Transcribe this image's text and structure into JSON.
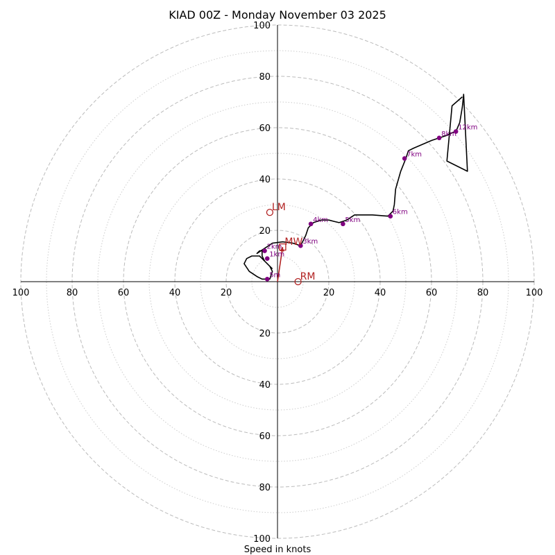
{
  "chart_data": {
    "type": "hodograph",
    "title": "KIAD 00Z - Monday November 03 2025",
    "xlabel": "Speed in knots",
    "range": [
      -100,
      100
    ],
    "ring_labels": [
      "20",
      "40",
      "60",
      "80",
      "100"
    ],
    "left_ticks": [
      "100",
      "80",
      "60",
      "40",
      "20"
    ],
    "right_ticks": [
      "20",
      "40",
      "60",
      "80",
      "100"
    ],
    "top_ticks": [
      "100",
      "80",
      "60",
      "40",
      "20"
    ],
    "bottom_ticks": [
      "20",
      "40",
      "60",
      "80",
      "100"
    ],
    "major_rings": [
      20,
      40,
      60,
      80,
      100
    ],
    "minor_rings": [
      10,
      30,
      50,
      70,
      90
    ],
    "trace": [
      [
        -2,
        5
      ],
      [
        -4,
        7
      ],
      [
        -5,
        8
      ],
      [
        -6,
        9
      ],
      [
        -7,
        10
      ],
      [
        -10,
        10
      ],
      [
        -12,
        9
      ],
      [
        -13,
        7
      ],
      [
        -11,
        4
      ],
      [
        -8,
        2
      ],
      [
        -6,
        1
      ],
      [
        -4,
        1
      ],
      [
        -3,
        1
      ],
      [
        -2,
        4
      ],
      [
        -3,
        6
      ],
      [
        -5,
        8
      ],
      [
        -6,
        10
      ],
      [
        -6,
        12
      ],
      [
        -7,
        12
      ],
      [
        -8,
        11
      ],
      [
        -5,
        13
      ],
      [
        -2,
        15
      ],
      [
        2,
        15.5
      ],
      [
        6,
        15
      ],
      [
        9,
        14
      ],
      [
        11,
        18
      ],
      [
        12,
        21
      ],
      [
        14,
        23
      ],
      [
        17,
        24
      ],
      [
        20,
        24
      ],
      [
        22,
        23.5
      ],
      [
        24,
        23
      ],
      [
        27,
        24
      ],
      [
        30,
        26
      ],
      [
        37,
        26
      ],
      [
        43,
        25.5
      ],
      [
        45,
        27.5
      ],
      [
        45.5,
        30
      ],
      [
        46,
        36
      ],
      [
        48,
        43
      ],
      [
        50,
        48
      ],
      [
        51,
        51
      ],
      [
        53,
        52
      ],
      [
        60,
        55
      ],
      [
        63,
        56
      ],
      [
        66,
        57
      ],
      [
        68,
        58
      ],
      [
        69.5,
        58.5
      ],
      [
        71,
        62
      ],
      [
        72,
        68
      ],
      [
        72.5,
        73
      ],
      [
        74,
        43
      ],
      [
        66,
        47
      ],
      [
        68,
        68.5
      ],
      [
        72,
        72
      ]
    ],
    "heights": [
      {
        "label": "5m",
        "u": -4,
        "v": 1
      },
      {
        "label": "1km",
        "u": -4,
        "v": 9
      },
      {
        "label": "2km",
        "u": -5,
        "v": 12
      },
      {
        "label": "3km",
        "u": 9,
        "v": 14
      },
      {
        "label": "4km",
        "u": 13,
        "v": 22.5
      },
      {
        "label": "5km",
        "u": 25.5,
        "v": 22.5
      },
      {
        "label": "6km",
        "u": 44,
        "v": 25.5
      },
      {
        "label": "7km",
        "u": 49.5,
        "v": 48
      },
      {
        "label": "8km",
        "u": 63,
        "v": 56
      },
      {
        "label": "12km",
        "u": 69.5,
        "v": 58.5
      }
    ],
    "motions": [
      {
        "label": "LM",
        "u": -3,
        "v": 27,
        "marker": "circle"
      },
      {
        "label": "MW",
        "u": 2,
        "v": 13.5,
        "marker": "square"
      },
      {
        "label": "RM",
        "u": 8,
        "v": 0,
        "marker": "circle"
      }
    ],
    "mean_wind_vector": {
      "u": 2,
      "v": 13.5
    },
    "colors": {
      "trace": "#000000",
      "height_marker": "#800080",
      "motion": "#b22222",
      "major_ring": "#bbbbbb",
      "minor_ring": "#cccccc",
      "axis": "#000000"
    }
  }
}
